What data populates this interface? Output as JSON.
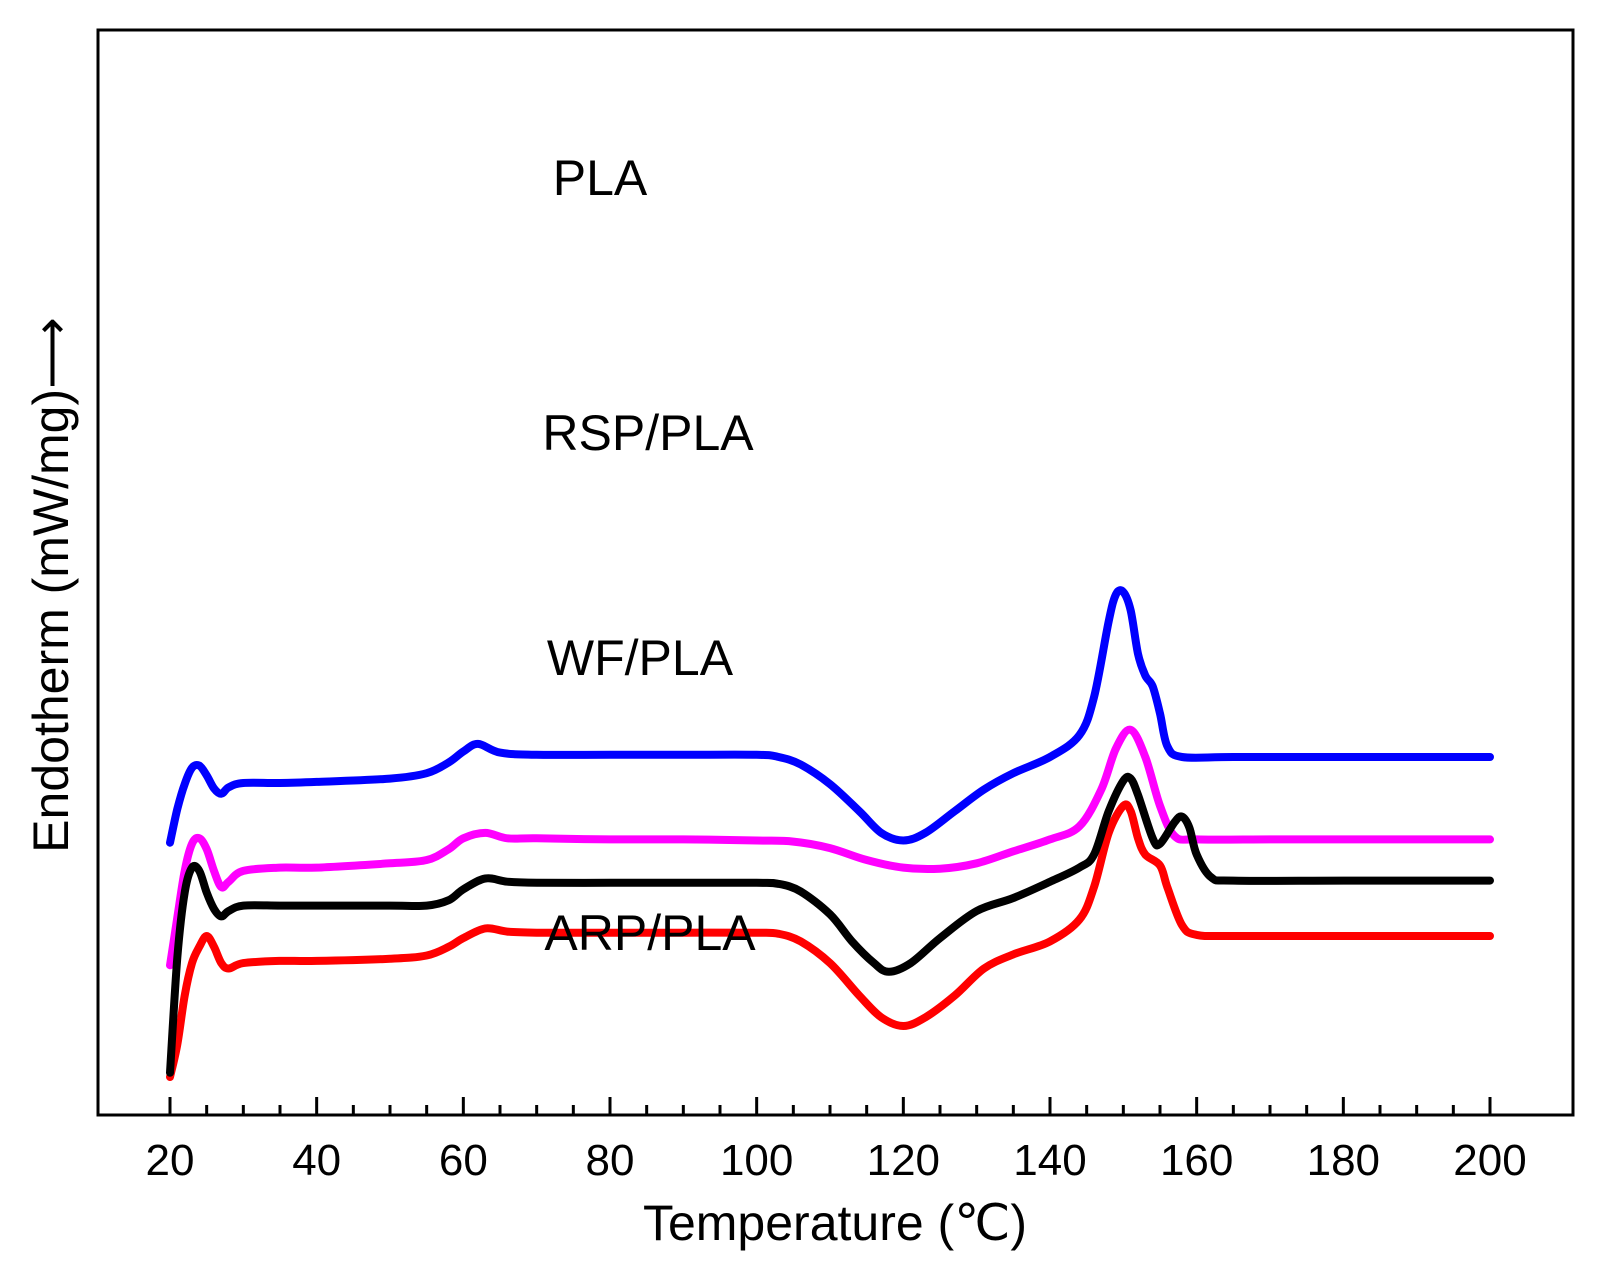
{
  "chart_data": {
    "type": "line",
    "title": "",
    "xlabel": "Temperature (℃)",
    "ylabel": "Endotherm (mW/mg)⟶",
    "xlim": [
      10,
      205
    ],
    "ylim": [
      0,
      100
    ],
    "x_ticks": [
      20,
      40,
      60,
      80,
      100,
      120,
      140,
      160,
      180,
      200
    ],
    "y_ticks": [],
    "grid": false,
    "legend": "inline labels",
    "series": [
      {
        "name": "PLA",
        "color": "#ff00ff",
        "points": [
          [
            20,
            13.8
          ],
          [
            21,
            18.2
          ],
          [
            22,
            22.5
          ],
          [
            23,
            25.0
          ],
          [
            24,
            25.5
          ],
          [
            25,
            24.5
          ],
          [
            26,
            22.5
          ],
          [
            27,
            21.0
          ],
          [
            28,
            21.5
          ],
          [
            30,
            22.5
          ],
          [
            35,
            22.8
          ],
          [
            40,
            22.8
          ],
          [
            50,
            23.2
          ],
          [
            55,
            23.5
          ],
          [
            58,
            24.5
          ],
          [
            60,
            25.5
          ],
          [
            63,
            26.0
          ],
          [
            66,
            25.5
          ],
          [
            70,
            25.5
          ],
          [
            80,
            25.4
          ],
          [
            90,
            25.4
          ],
          [
            100,
            25.3
          ],
          [
            105,
            25.2
          ],
          [
            110,
            24.6
          ],
          [
            115,
            23.5
          ],
          [
            120,
            22.8
          ],
          [
            125,
            22.7
          ],
          [
            130,
            23.2
          ],
          [
            135,
            24.3
          ],
          [
            140,
            25.4
          ],
          [
            144,
            26.6
          ],
          [
            147,
            30.0
          ],
          [
            149,
            33.8
          ],
          [
            151,
            35.5
          ],
          [
            153,
            33.0
          ],
          [
            155,
            28.5
          ],
          [
            157,
            25.7
          ],
          [
            160,
            25.4
          ],
          [
            170,
            25.4
          ],
          [
            180,
            25.4
          ],
          [
            190,
            25.4
          ],
          [
            200,
            25.4
          ]
        ],
        "label": "PLA"
      },
      {
        "name": "RSP/PLA",
        "color": "#0000ff",
        "points": [
          [
            20,
            25.1
          ],
          [
            21,
            28.2
          ],
          [
            22,
            30.5
          ],
          [
            23,
            32.0
          ],
          [
            24,
            32.2
          ],
          [
            25,
            31.3
          ],
          [
            26,
            30.1
          ],
          [
            27,
            29.6
          ],
          [
            28,
            30.2
          ],
          [
            30,
            30.6
          ],
          [
            35,
            30.6
          ],
          [
            40,
            30.7
          ],
          [
            50,
            31.0
          ],
          [
            55,
            31.5
          ],
          [
            58,
            32.5
          ],
          [
            60,
            33.5
          ],
          [
            62,
            34.2
          ],
          [
            65,
            33.4
          ],
          [
            70,
            33.2
          ],
          [
            80,
            33.2
          ],
          [
            90,
            33.2
          ],
          [
            100,
            33.2
          ],
          [
            103,
            33.0
          ],
          [
            106,
            32.3
          ],
          [
            110,
            30.5
          ],
          [
            114,
            28.0
          ],
          [
            117,
            26.0
          ],
          [
            120,
            25.3
          ],
          [
            123,
            26.0
          ],
          [
            127,
            28.0
          ],
          [
            131,
            30.0
          ],
          [
            135,
            31.5
          ],
          [
            140,
            33.0
          ],
          [
            144,
            35.0
          ],
          [
            146,
            38.5
          ],
          [
            148,
            45.5
          ],
          [
            149,
            48.0
          ],
          [
            150,
            48.2
          ],
          [
            151,
            46.5
          ],
          [
            152,
            42.5
          ],
          [
            153,
            40.5
          ],
          [
            154,
            39.5
          ],
          [
            155,
            37.0
          ],
          [
            156,
            34.0
          ],
          [
            158,
            33.0
          ],
          [
            165,
            33.0
          ],
          [
            180,
            33.0
          ],
          [
            200,
            33.0
          ]
        ],
        "label": "RSP/PLA"
      },
      {
        "name": "WF/PLA",
        "color": "#ff0000",
        "points": [
          [
            20,
            3.5
          ],
          [
            21,
            6.5
          ],
          [
            22,
            11.0
          ],
          [
            23,
            14.0
          ],
          [
            24,
            15.5
          ],
          [
            25,
            16.5
          ],
          [
            26,
            15.5
          ],
          [
            27,
            14.0
          ],
          [
            28,
            13.5
          ],
          [
            30,
            14.0
          ],
          [
            35,
            14.2
          ],
          [
            40,
            14.2
          ],
          [
            50,
            14.4
          ],
          [
            55,
            14.7
          ],
          [
            58,
            15.5
          ],
          [
            60,
            16.3
          ],
          [
            63,
            17.2
          ],
          [
            66,
            16.9
          ],
          [
            70,
            16.8
          ],
          [
            80,
            16.8
          ],
          [
            90,
            16.8
          ],
          [
            100,
            16.8
          ],
          [
            103,
            16.7
          ],
          [
            106,
            16.0
          ],
          [
            110,
            14.0
          ],
          [
            114,
            11.0
          ],
          [
            117,
            9.0
          ],
          [
            120,
            8.2
          ],
          [
            123,
            9.0
          ],
          [
            127,
            11.0
          ],
          [
            131,
            13.5
          ],
          [
            135,
            14.8
          ],
          [
            140,
            16.0
          ],
          [
            144,
            18.0
          ],
          [
            146,
            21.0
          ],
          [
            148,
            26.0
          ],
          [
            150,
            28.5
          ],
          [
            151,
            28.0
          ],
          [
            152,
            25.5
          ],
          [
            153,
            24.0
          ],
          [
            155,
            23.0
          ],
          [
            156,
            21.0
          ],
          [
            158,
            17.5
          ],
          [
            160,
            16.6
          ],
          [
            165,
            16.5
          ],
          [
            180,
            16.5
          ],
          [
            200,
            16.5
          ]
        ],
        "label": "WF/PLA"
      },
      {
        "name": "ARP/PLA",
        "color": "#000000",
        "points": [
          [
            20,
            3.9
          ],
          [
            21,
            14.5
          ],
          [
            22,
            20.5
          ],
          [
            23,
            22.8
          ],
          [
            24,
            22.5
          ],
          [
            25,
            20.5
          ],
          [
            26,
            19.0
          ],
          [
            27,
            18.3
          ],
          [
            28,
            18.8
          ],
          [
            30,
            19.3
          ],
          [
            35,
            19.3
          ],
          [
            40,
            19.3
          ],
          [
            50,
            19.3
          ],
          [
            55,
            19.3
          ],
          [
            58,
            19.8
          ],
          [
            60,
            20.8
          ],
          [
            63,
            21.8
          ],
          [
            66,
            21.5
          ],
          [
            70,
            21.4
          ],
          [
            80,
            21.4
          ],
          [
            90,
            21.4
          ],
          [
            100,
            21.4
          ],
          [
            103,
            21.3
          ],
          [
            106,
            20.6
          ],
          [
            110,
            18.5
          ],
          [
            113,
            16.0
          ],
          [
            116,
            14.0
          ],
          [
            118,
            13.2
          ],
          [
            121,
            14.0
          ],
          [
            125,
            16.3
          ],
          [
            130,
            18.8
          ],
          [
            135,
            20.0
          ],
          [
            140,
            21.5
          ],
          [
            144,
            22.8
          ],
          [
            146,
            24.0
          ],
          [
            148,
            28.0
          ],
          [
            150,
            30.8
          ],
          [
            151,
            31.0
          ],
          [
            152,
            29.5
          ],
          [
            154,
            25.5
          ],
          [
            155,
            25.0
          ],
          [
            157,
            27.0
          ],
          [
            158,
            27.5
          ],
          [
            159,
            26.5
          ],
          [
            160,
            24.0
          ],
          [
            162,
            21.9
          ],
          [
            165,
            21.6
          ],
          [
            180,
            21.6
          ],
          [
            200,
            21.6
          ]
        ],
        "label": "ARP/PLA"
      }
    ]
  }
}
